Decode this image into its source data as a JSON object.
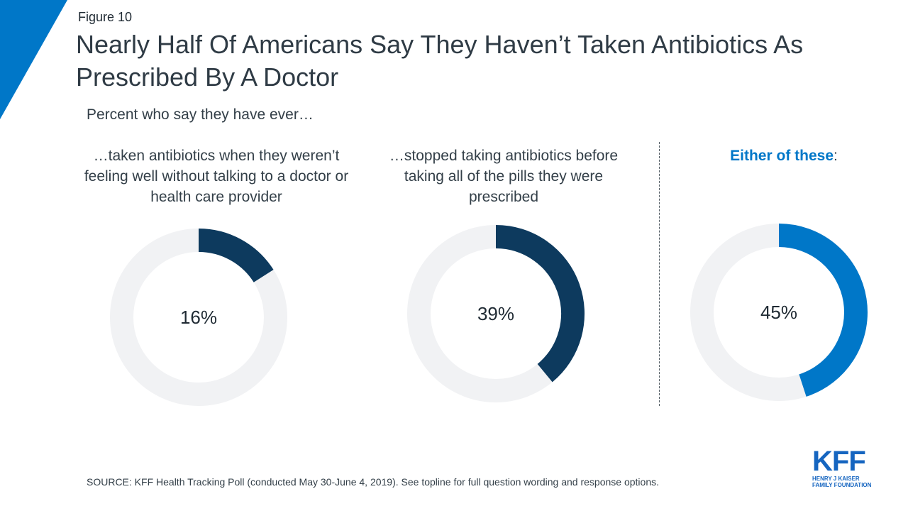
{
  "header": {
    "figure_label": "Figure 10",
    "title": "Nearly Half Of Americans Say They Haven’t Taken Antibiotics As Prescribed By A Doctor",
    "subtitle": "Percent who say they have ever…"
  },
  "colors": {
    "dark_navy": "#0d3a5e",
    "bright_blue": "#0077c8",
    "track_gray": "#f1f2f4",
    "corner_blue": "#0077c8"
  },
  "chart_data": [
    {
      "type": "pie",
      "label": "…taken antibiotics when they weren’t feeling well without talking to a doctor or health care provider",
      "value": 16,
      "value_label": "16%",
      "color": "#0d3a5e"
    },
    {
      "type": "pie",
      "label": "…stopped taking antibiotics before taking all of the pills they were prescribed",
      "value": 39,
      "value_label": "39%",
      "color": "#0d3a5e"
    },
    {
      "type": "pie",
      "label_emphasis": "Either of these",
      "label_suffix": ":",
      "value": 45,
      "value_label": "45%",
      "color": "#0077c8"
    }
  ],
  "footer": {
    "source": "SOURCE: KFF Health Tracking Poll (conducted May 30-June 4, 2019). See topline for full question wording and response options.",
    "logo_mark": "KFF",
    "logo_line1": "HENRY J KAISER",
    "logo_line2": "FAMILY FOUNDATION"
  }
}
